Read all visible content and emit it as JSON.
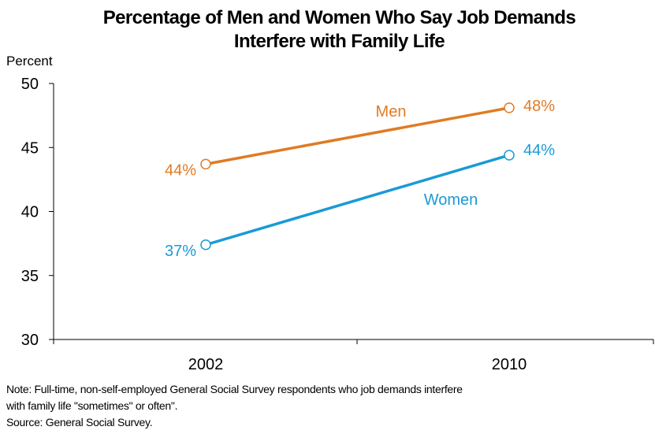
{
  "chart_data": {
    "type": "line",
    "title_lines": [
      "Percentage of Men and Women Who Say Job Demands",
      "Interfere with Family Life"
    ],
    "ylabel": "Percent",
    "x": [
      "2002",
      "2010"
    ],
    "ylim": [
      30,
      50
    ],
    "yticks": [
      "30",
      "35",
      "40",
      "45",
      "50"
    ],
    "series": [
      {
        "name": "Men",
        "values": [
          43.7,
          48.1
        ],
        "data_labels": [
          "44%",
          "48%"
        ],
        "color": "#e07b24"
      },
      {
        "name": "Women",
        "values": [
          37.4,
          44.4
        ],
        "data_labels": [
          "37%",
          "44%"
        ],
        "color": "#1a9ad6"
      }
    ]
  },
  "notes": [
    "Note: Full-time, non-self-employed General Social Survey respondents who job demands interfere",
    "with family life \"sometimes\" or often\".",
    "Source: General Social Survey."
  ]
}
